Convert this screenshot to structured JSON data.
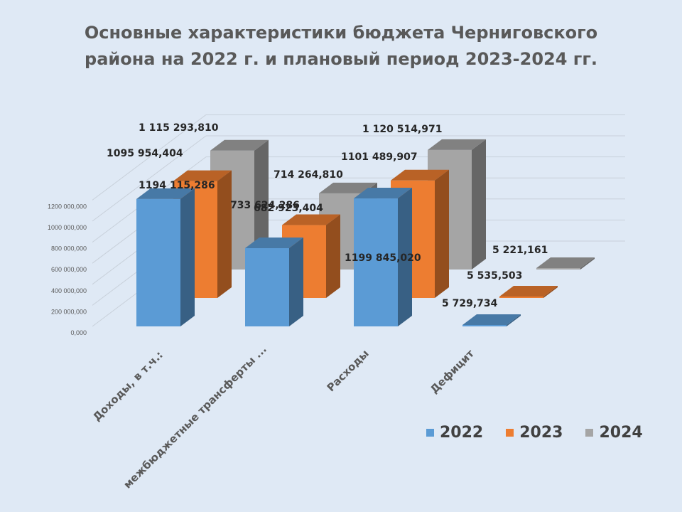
{
  "chart_data": {
    "type": "bar",
    "title": [
      "Основные характеристики бюджета Черниговского",
      "района на 2022 г. и плановый период 2023-2024 гг."
    ],
    "categories": [
      "Доходы, в т.ч.:",
      "межбюджетные трансферты ...",
      "Расходы",
      "Дефицит"
    ],
    "ylim": [
      0,
      1200000000
    ],
    "yticks": [
      "0,000",
      "200 000,000",
      "400 000,000",
      "600 000,000",
      "800 000,000",
      "1000 000,000",
      "1200 000,000"
    ],
    "grid": true,
    "legend_position": "bottom-right",
    "series": [
      {
        "name": "2022",
        "color": "#5b9bd5",
        "values": [
          1194115.286,
          733624.286,
          1199845.02,
          5729.734
        ],
        "labels": [
          "1194 115,286",
          "733 624,286",
          "1199 845,020",
          "5 729,734"
        ]
      },
      {
        "name": "2023",
        "color": "#ed7d31",
        "values": [
          1095954.404,
          682923.404,
          1101489.907,
          5535.503
        ],
        "labels": [
          "1095 954,404",
          "682 923,404",
          "1101 489,907",
          "5 535,503"
        ]
      },
      {
        "name": "2024",
        "color": "#a5a5a5",
        "values": [
          1115293.81,
          714264.81,
          1120514.971,
          5221.161
        ],
        "labels": [
          "1 115 293,810",
          "714 264,810",
          "1 120 514,971",
          "5 221,161"
        ]
      }
    ]
  }
}
